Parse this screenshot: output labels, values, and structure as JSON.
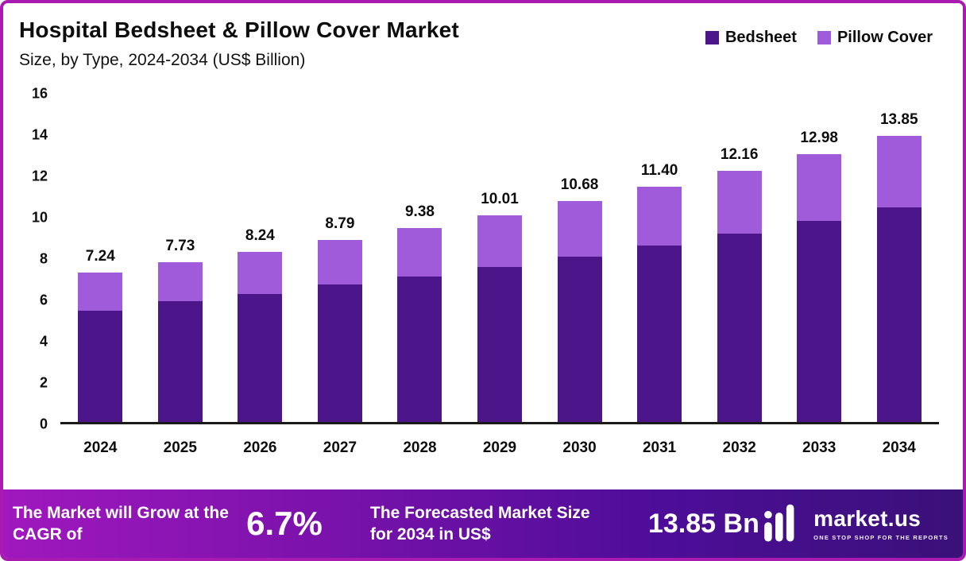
{
  "header": {
    "title": "Hospital Bedsheet & Pillow Cover Market",
    "subtitle": "Size, by Type, 2024-2034 (US$ Billion)"
  },
  "legend": [
    {
      "label": "Bedsheet",
      "color": "#4C1589"
    },
    {
      "label": "Pillow Cover",
      "color": "#A05BDB"
    }
  ],
  "chart_data": {
    "type": "bar",
    "stacked": true,
    "title": "Hospital Bedsheet & Pillow Cover Market Size, by Type, 2024-2034 (US$ Billion)",
    "categories": [
      "2024",
      "2025",
      "2026",
      "2027",
      "2028",
      "2029",
      "2030",
      "2031",
      "2032",
      "2033",
      "2034"
    ],
    "series": [
      {
        "name": "Bedsheet",
        "color": "#4C1589",
        "values": [
          5.4,
          5.85,
          6.2,
          6.65,
          7.05,
          7.5,
          8.0,
          8.55,
          9.1,
          9.75,
          10.4
        ]
      },
      {
        "name": "Pillow Cover",
        "color": "#A05BDB",
        "values": [
          1.84,
          1.88,
          2.04,
          2.14,
          2.33,
          2.51,
          2.68,
          2.85,
          3.06,
          3.23,
          3.45
        ]
      }
    ],
    "totals": [
      "7.24",
      "7.73",
      "8.24",
      "8.79",
      "9.38",
      "10.01",
      "10.68",
      "11.40",
      "12.16",
      "12.98",
      "13.85"
    ],
    "xlabel": "",
    "ylabel": "",
    "ylim": [
      0,
      16
    ],
    "yticks": [
      0,
      2,
      4,
      6,
      8,
      10,
      12,
      14,
      16
    ],
    "grid": false,
    "legend_position": "top-right"
  },
  "banner": {
    "cagr_label": "The Market will Grow at the CAGR of",
    "cagr_value": "6.7%",
    "forecast_label": "The Forecasted Market Size for 2034 in US$",
    "forecast_value": "13.85 Bn",
    "brand": "market.us",
    "brand_tagline": "ONE STOP SHOP FOR THE REPORTS"
  },
  "colors": {
    "border": "#A91BB0",
    "bedsheet": "#4C1589",
    "pillow_cover": "#A05BDB",
    "banner_gradient_start": "#A018BE",
    "banner_gradient_end": "#391178",
    "text": "#0d0d0d"
  }
}
